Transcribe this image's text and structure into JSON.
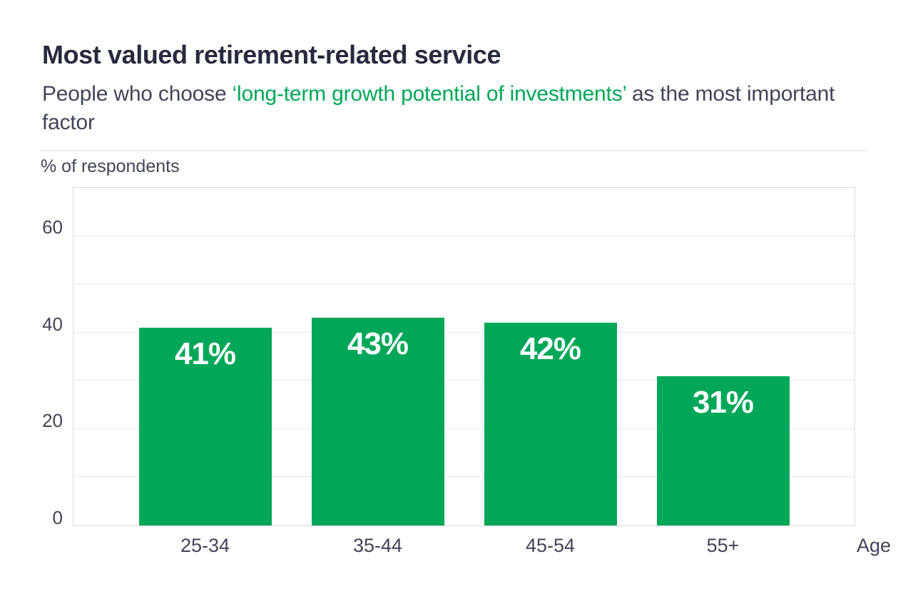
{
  "page": {
    "background": "#ffffff"
  },
  "header": {
    "title": "Most valued retirement-related service",
    "subtitle_prefix": "People who choose ",
    "subtitle_highlight": "‘long-term growth potential of investments’",
    "subtitle_suffix": " as the most important factor"
  },
  "chart_data": {
    "type": "bar",
    "title": "Most valued retirement-related service",
    "subtitle": "People who choose ‘long-term growth potential of investments’ as the most important factor",
    "ylabel": "% of respondents",
    "xlabel": "Age",
    "categories": [
      "25-34",
      "35-44",
      "45-54",
      "55+"
    ],
    "values": [
      41,
      43,
      42,
      31
    ],
    "bar_labels": [
      "41%",
      "43%",
      "42%",
      "31%"
    ],
    "ylim": [
      0,
      70
    ],
    "yticks": [
      0,
      20,
      40,
      60
    ],
    "gridline_step": 10,
    "grid": true,
    "legend": false,
    "bar_color": "#00a758",
    "bar_label_color": "#ffffff",
    "highlight_color": "#00a758",
    "title_color": "#282b3e",
    "text_color": "#424559",
    "gridline_color": "#e7e7e7",
    "frame_color": "#d9d9d9"
  }
}
